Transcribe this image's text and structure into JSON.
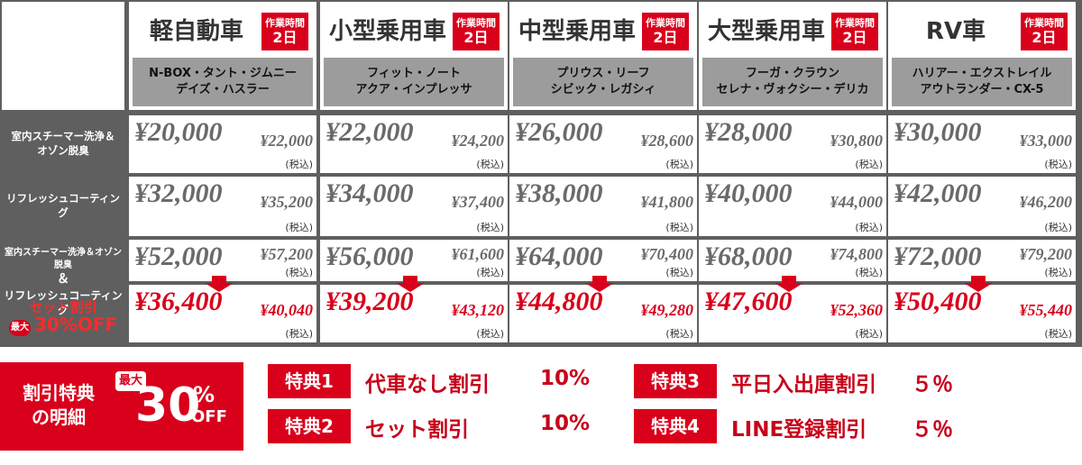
{
  "header_columns": [
    {
      "name": "軽自動車",
      "badge": [
        "作業時間",
        "2日"
      ],
      "examples": [
        "N-BOX・タント・ジムニー",
        "デイズ・ハスラー"
      ]
    },
    {
      "name": "小型乗用車",
      "badge": [
        "作業時間",
        "2日"
      ],
      "examples": [
        "フィット・ノート",
        "アクア・インプレッサ"
      ]
    },
    {
      "name": "中型乗用車",
      "badge": [
        "作業時間",
        "2日"
      ],
      "examples": [
        "プリウス・リーフ",
        "シビック・レガシィ"
      ]
    },
    {
      "name": "大型乗用車",
      "badge": [
        "作業時間",
        "2日"
      ],
      "examples": [
        "フーガ・クラウン",
        "セレナ・ヴォクシー・デリカ"
      ]
    },
    {
      "name": "RV車",
      "badge": [
        "作業時間",
        "2日"
      ],
      "examples": [
        "ハリアー・エクストレイル",
        "アウトランダー・CX-5"
      ]
    }
  ],
  "rows": [
    {
      "label": [
        "室内スチーマー洗浄＆",
        "オゾン脱臭"
      ],
      "prices": [
        {
          "price": "¥20,000",
          "tax_price": "¥22,000",
          "tax_note": "(税込)"
        },
        {
          "price": "¥22,000",
          "tax_price": "¥24,200",
          "tax_note": "(税込)"
        },
        {
          "price": "¥26,000",
          "tax_price": "¥28,600",
          "tax_note": "(税込)"
        },
        {
          "price": "¥28,000",
          "tax_price": "¥30,800",
          "tax_note": "(税込)"
        },
        {
          "price": "¥30,000",
          "tax_price": "¥33,000",
          "tax_note": "(税込)"
        }
      ]
    },
    {
      "label": [
        "リフレッシュコーティング"
      ],
      "prices": [
        {
          "price": "¥32,000",
          "tax_price": "¥35,200",
          "tax_note": "(税込)"
        },
        {
          "price": "¥34,000",
          "tax_price": "¥37,400",
          "tax_note": "(税込)"
        },
        {
          "price": "¥38,000",
          "tax_price": "¥41,800",
          "tax_note": "(税込)"
        },
        {
          "price": "¥40,000",
          "tax_price": "¥44,000",
          "tax_note": "(税込)"
        },
        {
          "price": "¥42,000",
          "tax_price": "¥46,200",
          "tax_note": "(税込)"
        }
      ]
    },
    {
      "label": [
        "室内スチーマー洗浄＆オゾン脱臭",
        "＆",
        "リフレッシュコーティング"
      ],
      "discount_label": "セット割引",
      "discount_badge": "最大",
      "discount_rate": "30%OFF",
      "prices": [
        {
          "price": "¥52,000",
          "tax_price": "¥57,200",
          "tax_note": "(税込)"
        },
        {
          "price": "¥56,000",
          "tax_price": "¥61,600",
          "tax_note": "(税込)"
        },
        {
          "price": "¥64,000",
          "tax_price": "¥70,400",
          "tax_note": "(税込)"
        },
        {
          "price": "¥68,000",
          "tax_price": "¥74,800",
          "tax_note": "(税込)"
        },
        {
          "price": "¥72,000",
          "tax_price": "¥79,200",
          "tax_note": "(税込)"
        }
      ],
      "discount_prices": [
        {
          "price": "¥36,400",
          "tax_price": "¥40,040",
          "tax_note": "(税込)"
        },
        {
          "price": "¥39,200",
          "tax_price": "¥43,120",
          "tax_note": "(税込)"
        },
        {
          "price": "¥44,800",
          "tax_price": "¥49,280",
          "tax_note": "(税込)"
        },
        {
          "price": "¥47,600",
          "tax_price": "¥52,360",
          "tax_note": "(税込)"
        },
        {
          "price": "¥50,400",
          "tax_price": "¥55,440",
          "tax_note": "(税込)"
        }
      ]
    }
  ],
  "benefits": {
    "title": [
      "割引特典",
      "の明細"
    ],
    "badge_top": "最大",
    "badge_number": "30",
    "badge_percent": "%",
    "badge_off": "OFF",
    "items": [
      {
        "tag": "特典1",
        "name": "代車なし割引",
        "rate": "10%"
      },
      {
        "tag": "特典2",
        "name": "セット割引",
        "rate": "10%"
      },
      {
        "tag": "特典3",
        "name": "平日入出庫割引",
        "rate": "５％"
      },
      {
        "tag": "特典4",
        "name": "LINE登録割引",
        "rate": "５％"
      }
    ]
  }
}
